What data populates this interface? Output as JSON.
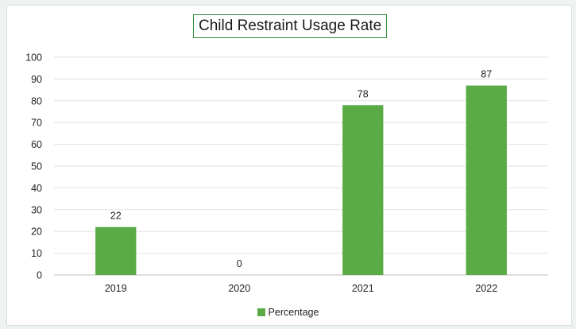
{
  "chart_data": {
    "type": "bar",
    "title": "Child Restraint Usage Rate",
    "categories": [
      "2019",
      "2020",
      "2021",
      "2022"
    ],
    "series": [
      {
        "name": "Percentage",
        "values": [
          22,
          0,
          78,
          87
        ]
      }
    ],
    "ylim": [
      0,
      100
    ],
    "yticks": [
      "0",
      "10",
      "20",
      "30",
      "40",
      "50",
      "60",
      "70",
      "80",
      "90",
      "100"
    ],
    "data_labels": [
      "22",
      "0",
      "78",
      "87"
    ],
    "grid": true,
    "legend_position": "bottom",
    "bar_color": "#5aab46",
    "title_border_color": "#2e8b3a"
  }
}
